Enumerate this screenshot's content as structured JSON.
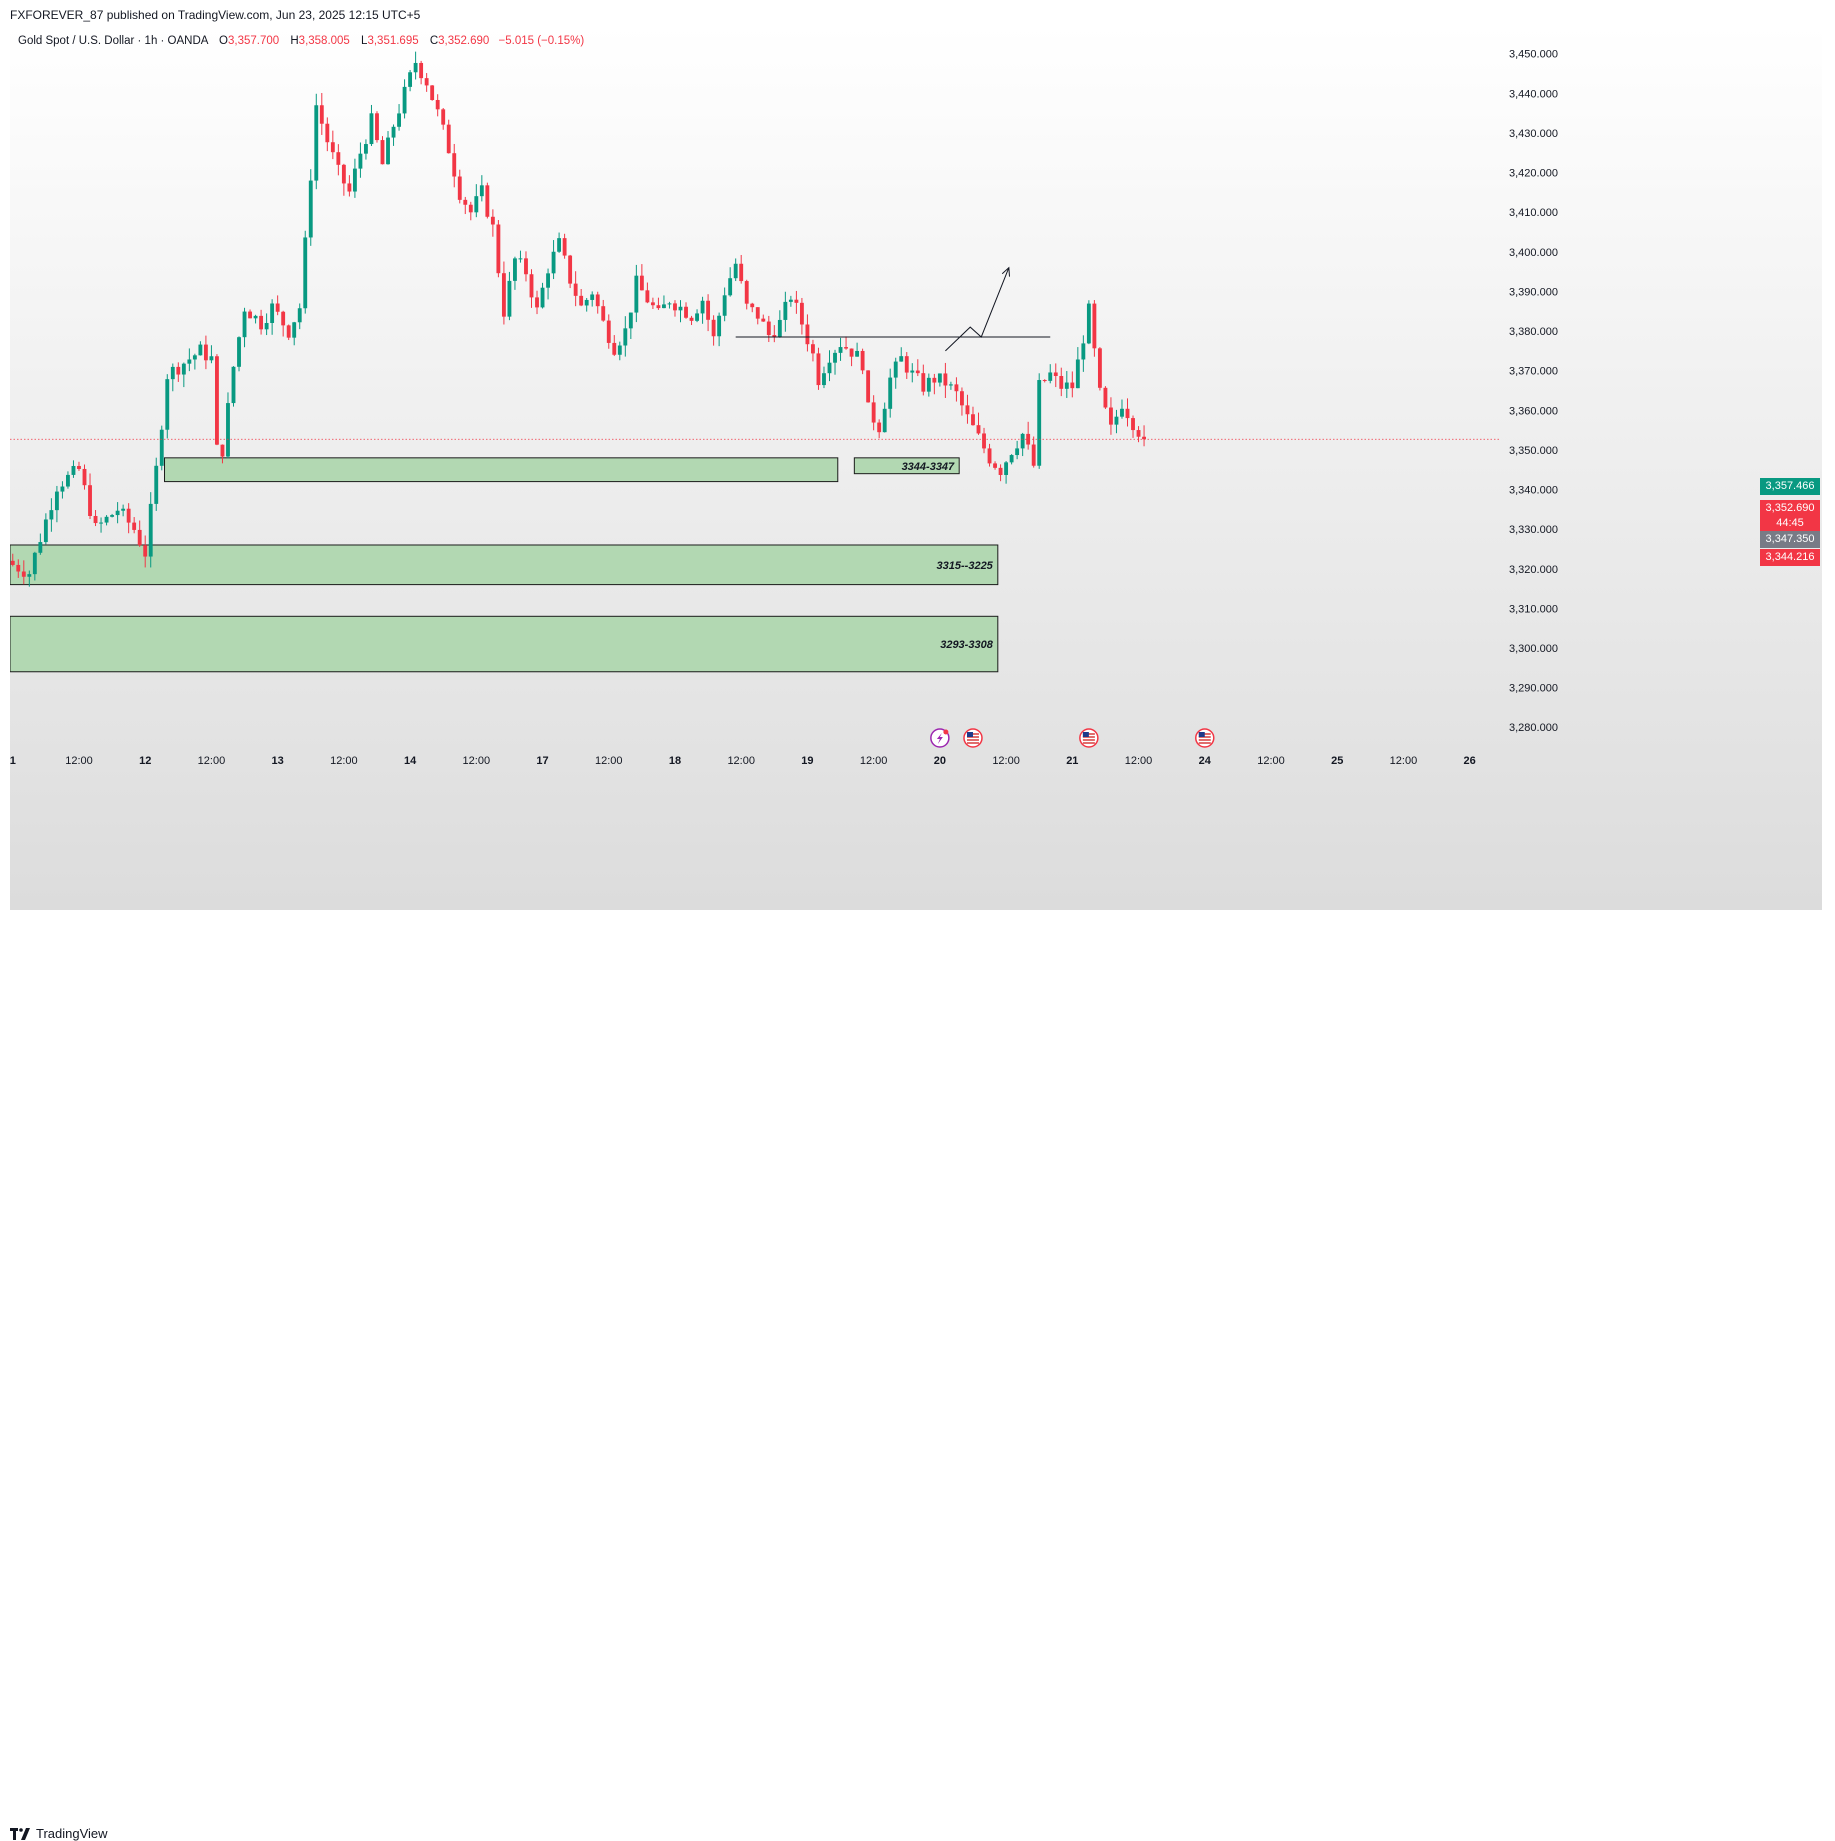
{
  "header": {
    "publisher_line": "FXFOREVER_87 published on TradingView.com, Jun 23, 2025 12:15 UTC+5"
  },
  "legend": {
    "symbol": "Gold Spot / U.S. Dollar · 1h · OANDA",
    "o_label": "O",
    "o_value": "3,357.700",
    "h_label": "H",
    "h_value": "3,358.005",
    "l_label": "L",
    "l_value": "3,351.695",
    "c_label": "C",
    "c_value": "3,352.690",
    "change": "−5.015 (−0.15%)"
  },
  "price_tags": {
    "green_tag": "3,357.466",
    "current_price": "3,352.690",
    "countdown": "44:45",
    "grey_tag": "3,347.350",
    "red_tag": "3,344.216"
  },
  "footer": {
    "brand": "TradingView"
  },
  "colors": {
    "up": "#089981",
    "down": "#f23645",
    "zone_fill": "#b2d8b2",
    "zone_border": "#1b1b1b",
    "axis_text": "#131722",
    "current_line": "#f23645"
  },
  "icons": [
    "lightning-icon",
    "us-flag-icon",
    "us-flag-icon",
    "us-flag-icon",
    "tradingview-logo-icon"
  ],
  "chart_data": {
    "type": "candlestick",
    "title": "Gold Spot / U.S. Dollar · 1h · OANDA",
    "y_ticks": [
      3280,
      3290,
      3300,
      3310,
      3320,
      3330,
      3340,
      3350,
      3360,
      3370,
      3380,
      3390,
      3400,
      3410,
      3420,
      3430,
      3440,
      3450
    ],
    "y_tick_labels": [
      "3,280.000",
      "3,290.000",
      "3,300.000",
      "3,310.000",
      "3,320.000",
      "3,330.000",
      "3,340.000",
      "3,350.000",
      "3,360.000",
      "3,370.000",
      "3,380.000",
      "3,390.000",
      "3,400.000",
      "3,410.000",
      "3,420.000",
      "3,430.000",
      "3,440.000",
      "3,450.000"
    ],
    "ylim": [
      3274,
      3457
    ],
    "x_ticks": [
      {
        "label": "1",
        "bar": 0
      },
      {
        "label": "12:00",
        "bar": 12
      },
      {
        "label": "12",
        "bar": 24
      },
      {
        "label": "12:00",
        "bar": 36
      },
      {
        "label": "13",
        "bar": 48
      },
      {
        "label": "12:00",
        "bar": 60
      },
      {
        "label": "14",
        "bar": 72
      },
      {
        "label": "12:00",
        "bar": 84
      },
      {
        "label": "17",
        "bar": 96
      },
      {
        "label": "12:00",
        "bar": 108
      },
      {
        "label": "18",
        "bar": 120
      },
      {
        "label": "12:00",
        "bar": 132
      },
      {
        "label": "19",
        "bar": 144
      },
      {
        "label": "12:00",
        "bar": 156
      },
      {
        "label": "20",
        "bar": 168
      },
      {
        "label": "12:00",
        "bar": 180
      },
      {
        "label": "21",
        "bar": 192
      },
      {
        "label": "12:00",
        "bar": 204
      },
      {
        "label": "24",
        "bar": 216
      },
      {
        "label": "12:00",
        "bar": 228
      },
      {
        "label": "25",
        "bar": 240
      },
      {
        "label": "12:00",
        "bar": 252
      },
      {
        "label": "26",
        "bar": 264
      }
    ],
    "total_bar_slots": 270,
    "keypoints": [
      [
        0,
        3321
      ],
      [
        3,
        3319
      ],
      [
        8,
        3341
      ],
      [
        12,
        3345
      ],
      [
        15,
        3330
      ],
      [
        19,
        3335
      ],
      [
        22,
        3330
      ],
      [
        24,
        3324
      ],
      [
        26,
        3345
      ],
      [
        28,
        3369
      ],
      [
        31,
        3372
      ],
      [
        34,
        3375
      ],
      [
        36,
        3373
      ],
      [
        37,
        3350
      ],
      [
        38,
        3350
      ],
      [
        40,
        3371
      ],
      [
        42,
        3386
      ],
      [
        45,
        3382
      ],
      [
        47,
        3386
      ],
      [
        50,
        3380
      ],
      [
        52,
        3386
      ],
      [
        53,
        3402
      ],
      [
        55,
        3437
      ],
      [
        57,
        3428
      ],
      [
        59,
        3420
      ],
      [
        61,
        3415
      ],
      [
        63,
        3425
      ],
      [
        65,
        3433
      ],
      [
        67,
        3422
      ],
      [
        69,
        3432
      ],
      [
        71,
        3440
      ],
      [
        73,
        3448
      ],
      [
        75,
        3443
      ],
      [
        77,
        3435
      ],
      [
        79,
        3426
      ],
      [
        81,
        3415
      ],
      [
        83,
        3410
      ],
      [
        85,
        3415
      ],
      [
        87,
        3406
      ],
      [
        89,
        3385
      ],
      [
        91,
        3398
      ],
      [
        93,
        3395
      ],
      [
        95,
        3385
      ],
      [
        97,
        3396
      ],
      [
        99,
        3402
      ],
      [
        101,
        3393
      ],
      [
        103,
        3386
      ],
      [
        105,
        3390
      ],
      [
        107,
        3382
      ],
      [
        109,
        3376
      ],
      [
        111,
        3380
      ],
      [
        113,
        3392
      ],
      [
        115,
        3388
      ],
      [
        117,
        3384
      ],
      [
        119,
        3388
      ],
      [
        121,
        3386
      ],
      [
        123,
        3384
      ],
      [
        125,
        3388
      ],
      [
        127,
        3378
      ],
      [
        129,
        3390
      ],
      [
        131,
        3397
      ],
      [
        133,
        3386
      ],
      [
        135,
        3384
      ],
      [
        137,
        3379
      ],
      [
        139,
        3382
      ],
      [
        141,
        3389
      ],
      [
        143,
        3382
      ],
      [
        145,
        3374
      ],
      [
        146,
        3368
      ],
      [
        148,
        3374
      ],
      [
        150,
        3377
      ],
      [
        152,
        3375
      ],
      [
        154,
        3372
      ],
      [
        155,
        3360
      ],
      [
        157,
        3356
      ],
      [
        159,
        3368
      ],
      [
        161,
        3373
      ],
      [
        163,
        3369
      ],
      [
        165,
        3366
      ],
      [
        167,
        3368
      ],
      [
        169,
        3367
      ],
      [
        171,
        3364
      ],
      [
        173,
        3358
      ],
      [
        175,
        3353
      ],
      [
        177,
        3348
      ],
      [
        179,
        3345
      ],
      [
        181,
        3350
      ],
      [
        183,
        3354
      ],
      [
        185,
        3346
      ],
      [
        186,
        3366
      ],
      [
        188,
        3369
      ],
      [
        190,
        3366
      ],
      [
        192,
        3366
      ],
      [
        193,
        3372
      ],
      [
        195,
        3385
      ],
      [
        197,
        3364
      ],
      [
        199,
        3355
      ],
      [
        201,
        3362
      ],
      [
        203,
        3357
      ],
      [
        205,
        3352.69
      ]
    ],
    "zones": [
      {
        "label": "",
        "low": 3342,
        "high": 3348,
        "bar_start": 28,
        "bar_end": 149
      },
      {
        "label": "3344-3347",
        "low": 3344,
        "high": 3348,
        "bar_start": 153,
        "bar_end": 171
      },
      {
        "label": "3315--3225",
        "low": 3316,
        "high": 3326,
        "bar_start": 0,
        "bar_end": 178
      },
      {
        "label": "3293-3308",
        "low": 3294,
        "high": 3308,
        "bar_start": -1,
        "bar_end": 178
      }
    ],
    "resistance_line": {
      "value": 3378.5,
      "bar_start": 131,
      "bar_end": 188
    },
    "projection_arrow": [
      [
        169,
        3375
      ],
      [
        173.5,
        3381
      ],
      [
        175.5,
        3378.5
      ],
      [
        180.5,
        3396
      ]
    ],
    "current_price": 3352.69,
    "price_tag_values": {
      "green": 3357.466,
      "current": 3352.69,
      "grey": 3347.35,
      "red": 3344.216
    },
    "event_icon_bars": [
      {
        "bar": 168,
        "icon": "lightning-icon"
      },
      {
        "bar": 174,
        "icon": "us-flag-icon"
      },
      {
        "bar": 195,
        "icon": "us-flag-icon"
      },
      {
        "bar": 216,
        "icon": "us-flag-icon"
      }
    ]
  }
}
